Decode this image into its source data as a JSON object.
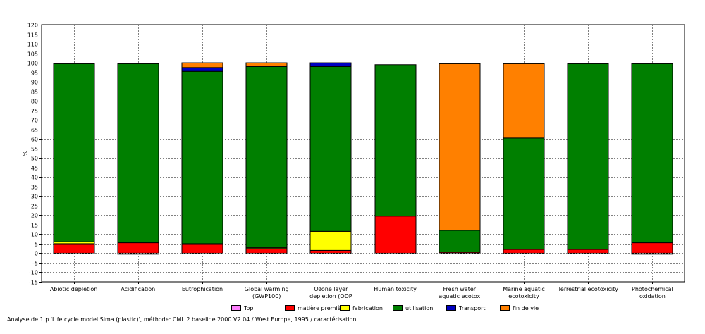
{
  "chart_data": {
    "type": "bar",
    "stacked": true,
    "ylabel": "%",
    "ylim": [
      -15,
      120
    ],
    "ytick_step": 5,
    "grid": true,
    "legend_position": "bottom",
    "categories": [
      [
        "Abiotic depletion"
      ],
      [
        "Acidification"
      ],
      [
        "Eutrophication"
      ],
      [
        "Global warming",
        "(GWP100)"
      ],
      [
        "Ozone layer",
        "depletion (ODP"
      ],
      [
        "Human toxicity"
      ],
      [
        "Fresh water",
        "aquatic ecotox"
      ],
      [
        "Marine aquatic",
        "ecotoxicity"
      ],
      [
        "Terrestrial ecotoxicity"
      ],
      [
        "Photochemical",
        "oxidation"
      ]
    ],
    "series": [
      {
        "name": "Top",
        "color": "#ff80ff",
        "values": [
          0,
          0,
          0,
          0,
          0,
          0,
          0,
          0,
          0,
          0
        ]
      },
      {
        "name": "matière première",
        "color": "#ff0000",
        "values": [
          5,
          5.5,
          5,
          2.5,
          1.5,
          19.5,
          0.5,
          2,
          2,
          5.5
        ]
      },
      {
        "name": "fabrication",
        "color": "#ffff00",
        "values": [
          1,
          0,
          0,
          0.5,
          10,
          0,
          0,
          0,
          0,
          0
        ]
      },
      {
        "name": "utilisation",
        "color": "#007f00",
        "values": [
          93.5,
          94,
          90.5,
          95,
          86.5,
          79.5,
          11.5,
          58.5,
          97.5,
          94
        ]
      },
      {
        "name": "Transport",
        "color": "#0000c0",
        "values": [
          0,
          0,
          2,
          0,
          2,
          0,
          0,
          0,
          0,
          0
        ]
      },
      {
        "name": "fin de vie",
        "color": "#ff8000",
        "values": [
          0,
          0,
          2.5,
          2,
          0,
          0,
          87.5,
          39,
          0,
          0
        ]
      }
    ],
    "negative_values": [
      {
        "series": "matière première",
        "values": [
          0,
          -0.5,
          0,
          0,
          0,
          0,
          0,
          0,
          0,
          -0.5
        ]
      }
    ]
  },
  "caption": "Analyse de 1 p 'Life cycle model Sima (plastic)', méthode: CML 2 baseline 2000 V2.04 / West Europe, 1995 / caractérisation"
}
